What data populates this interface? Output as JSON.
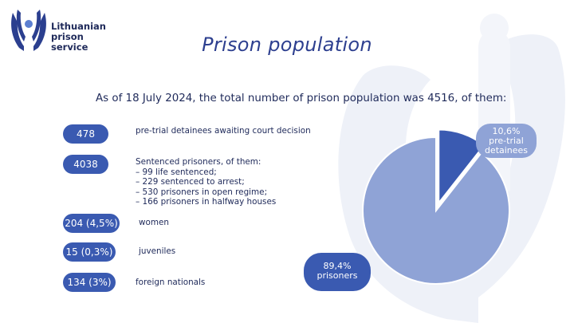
{
  "logo": {
    "lines": [
      "Lithuanian",
      "prison",
      "service"
    ]
  },
  "title": "Prison population",
  "subtitle": "As of 18 July 2024, the total number of prison population was 4516, of them:",
  "stats": [
    {
      "value": "478",
      "label": [
        "pre-trial detainees awaiting court decision"
      ]
    },
    {
      "value": "4038",
      "label": [
        "Sentenced prisoners, of them:",
        "– 99 life sentenced;",
        "– 229 sentenced to arrest;",
        "– 530 prisoners in open regime;",
        "– 166 prisoners in halfway houses"
      ]
    },
    {
      "value": "204 (4,5%)",
      "label": [
        "women"
      ]
    },
    {
      "value": "15 (0,3%)",
      "label": [
        "juveniles"
      ]
    },
    {
      "value": "134 (3%)",
      "label": [
        "foreign nationals"
      ]
    }
  ],
  "chart_data": {
    "type": "pie",
    "slices": [
      {
        "label": "pre-trial detainees",
        "percent_text": "10,6%",
        "value": 10.6,
        "color": "#3a5ab1"
      },
      {
        "label": "prisoners",
        "percent_text": "89,4%",
        "value": 89.4,
        "color": "#8fa3d6"
      }
    ]
  },
  "colors": {
    "accent": "#3a5ab1",
    "light": "#8fa3d6",
    "title": "#2d3f8f",
    "text": "#1f2a5a"
  }
}
